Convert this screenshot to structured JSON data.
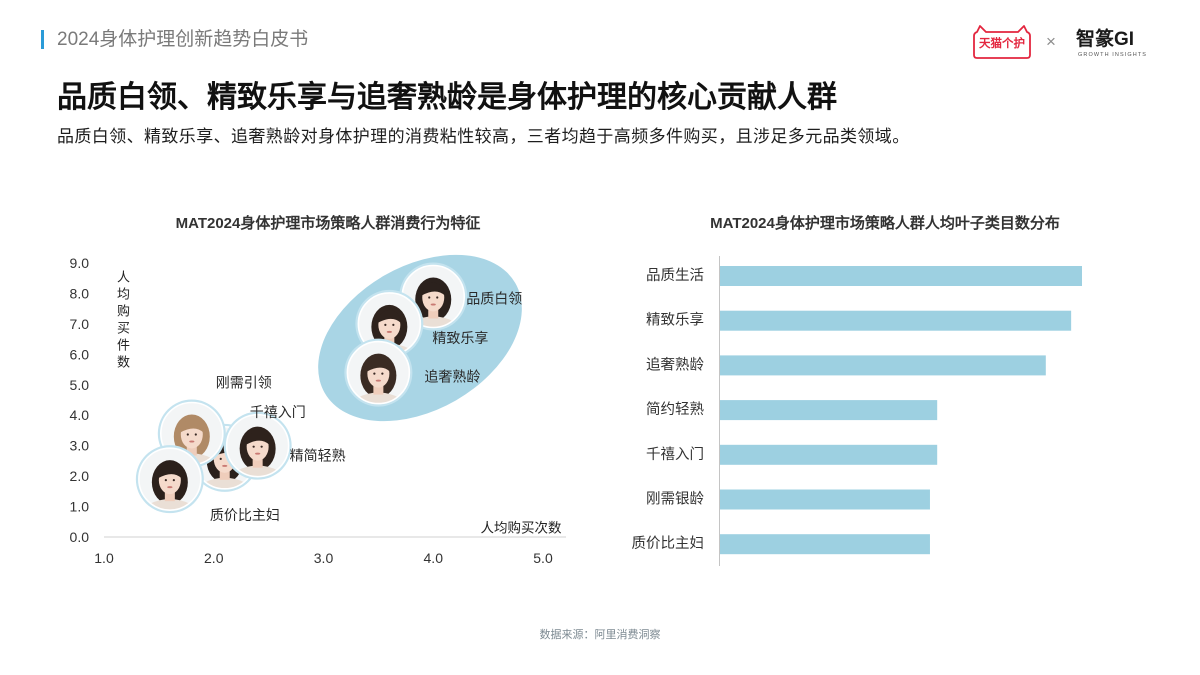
{
  "header": {
    "report_title": "2024身体护理创新趋势白皮书",
    "accent_color": "#2a9bd8"
  },
  "logos": {
    "brand_text": "天猫个护",
    "brand_color": "#e3263f",
    "separator": "×",
    "partner_name": "智篆GI",
    "partner_tagline": "GROWTH INSIGHTS"
  },
  "title": "品质白领、精致乐享与追奢熟龄是身体护理的核心贡献人群",
  "subtitle": "品质白领、精致乐享、追奢熟龄对身体护理的消费粘性较高，三者均趋于高频多件购买，且涉足多元品类领域。",
  "chart_data": [
    {
      "type": "scatter",
      "title": "MAT2024身体护理市场策略人群消费行为特征",
      "xlabel": "人均购买次数",
      "ylabel": "人均购买件数",
      "xlim": [
        1.0,
        5.0
      ],
      "ylim": [
        0.0,
        9.0
      ],
      "xticks": [
        "1.0",
        "2.0",
        "3.0",
        "4.0",
        "5.0"
      ],
      "yticks": [
        "0.0",
        "1.0",
        "2.0",
        "3.0",
        "4.0",
        "5.0",
        "6.0",
        "7.0",
        "8.0",
        "9.0"
      ],
      "points": [
        {
          "label": "品质白领",
          "x": 4.0,
          "y": 7.9
        },
        {
          "label": "精致乐享",
          "x": 3.6,
          "y": 7.0
        },
        {
          "label": "追奢熟龄",
          "x": 3.5,
          "y": 5.4
        },
        {
          "label": "千禧入门",
          "x": 2.1,
          "y": 2.6
        },
        {
          "label": "精简轻熟",
          "x": 2.4,
          "y": 3.0
        },
        {
          "label": "刚需引领",
          "x": 1.8,
          "y": 3.4
        },
        {
          "label": "质价比主妇",
          "x": 1.6,
          "y": 1.9
        }
      ],
      "highlight_points": [
        0,
        1,
        2
      ],
      "highlight_color": "#a9d5e5",
      "grid": false
    },
    {
      "type": "bar",
      "horizontal": true,
      "title": "MAT2024身体护理市场策略人群人均叶子类目数分布",
      "categories": [
        "品质生活",
        "精致乐享",
        "追奢熟龄",
        "简约轻熟",
        "千禧入门",
        "刚需银龄",
        "质价比主妇"
      ],
      "values": [
        1.0,
        0.97,
        0.9,
        0.6,
        0.6,
        0.58,
        0.58
      ],
      "color": "#9dd0e1",
      "grid": false
    }
  ],
  "source_note": "数据来源：阿里消费洞察"
}
